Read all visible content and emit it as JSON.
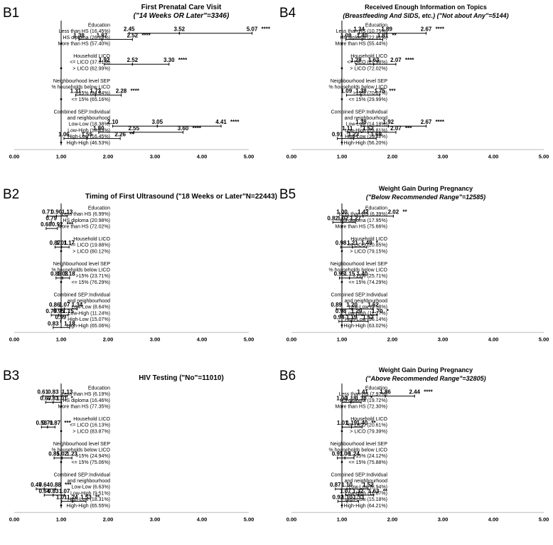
{
  "chart_data": [
    {
      "type": "forest",
      "panel": "B1",
      "title": "First Prenatal Care Visit",
      "subtitle": "(\"14 Weeks OR Later\"=3346)",
      "xlim": [
        0,
        5
      ],
      "ticks": [
        "0.00",
        "1.00",
        "2.00",
        "3.00",
        "4.00",
        "5.00"
      ],
      "rows": [
        {
          "label": "Education",
          "header": true
        },
        {
          "label": "Less than HS (16.45%)",
          "lo": 2.45,
          "or": 3.52,
          "hi": 5.07,
          "sig": "****"
        },
        {
          "label": "HS diploma (26.15%)",
          "lo": 1.38,
          "or": 1.87,
          "hi": 2.52,
          "sig": "****"
        },
        {
          "label": "More than HS (57.40%)",
          "ref": true
        },
        {
          "label": "",
          "gap": true
        },
        {
          "label": "Household LICO",
          "header": true
        },
        {
          "label": "<= LICO (37.01%)",
          "lo": 1.92,
          "or": 2.52,
          "hi": 3.3,
          "sig": "****"
        },
        {
          "label": "> LICO (62.99%)",
          "ref": true
        },
        {
          "label": "",
          "gap": true
        },
        {
          "label": "Neighbourhood level SEP",
          "header": true
        },
        {
          "label": "% households below LICO",
          "header": true
        },
        {
          "label": ">15% (34.84%)",
          "lo": 1.31,
          "or": 1.73,
          "hi": 2.28,
          "sig": "****"
        },
        {
          "label": "<= 15% (65.16%)",
          "ref": true
        },
        {
          "label": "",
          "gap": true
        },
        {
          "label": "Combined SEP:Individual",
          "header": true
        },
        {
          "label": "and neighbourhood",
          "header": true
        },
        {
          "label": "Low-Low (18.38%)",
          "lo": 2.1,
          "or": 3.05,
          "hi": 4.41,
          "sig": "****"
        },
        {
          "label": "Low-High (18.63%)",
          "lo": 1.8,
          "or": 2.55,
          "hi": 3.6,
          "sig": "****"
        },
        {
          "label": "High-Low (16.45%)",
          "lo": 1.06,
          "or": 1.55,
          "hi": 2.26,
          "sig": "**"
        },
        {
          "label": "High-High (46.53%)",
          "ref": true
        }
      ]
    },
    {
      "type": "forest",
      "panel": "B2",
      "title": "Timing of First Ultrasound (\"18 Weeks or Later\"N=22443)",
      "subtitle": "",
      "xlim": [
        0,
        5
      ],
      "ticks": [
        "0.00",
        "1.00",
        "2.00",
        "3.00",
        "4.00",
        "5.00"
      ],
      "rows": [
        {
          "label": "Education",
          "header": true
        },
        {
          "label": "Less than HS (6.99%)",
          "lo": 0.71,
          "or": 0.9,
          "hi": 1.13,
          "sig": ""
        },
        {
          "label": "HS diploma (20.98%)",
          "lo": null,
          "or": 0.79,
          "hi": null,
          "sig": ""
        },
        {
          "label": "More than HS (72.02%)",
          "lo": 0.68,
          "or": null,
          "hi": 0.92,
          "sig": "***"
        },
        {
          "label": "",
          "gap": true
        },
        {
          "label": "Household LICO",
          "header": true
        },
        {
          "label": "<= LICO (19.88%)",
          "lo": 0.87,
          "or": 1.01,
          "hi": 1.17,
          "sig": ""
        },
        {
          "label": "> LICO (80.12%)",
          "ref": true
        },
        {
          "label": "",
          "gap": true
        },
        {
          "label": "Neighbourhood level SEP",
          "header": true
        },
        {
          "label": "% households below LICO",
          "header": true
        },
        {
          "label": ">15% (23.71%)",
          "lo": 0.89,
          "or": 1.03,
          "hi": 1.18,
          "sig": ""
        },
        {
          "label": "<= 15% (76.29%)",
          "ref": true
        },
        {
          "label": "",
          "gap": true
        },
        {
          "label": "Combined SEP:Individual",
          "header": true
        },
        {
          "label": "and neighbourhood",
          "header": true
        },
        {
          "label": "Low-Low (8.64%)",
          "lo": 0.86,
          "or": 1.07,
          "hi": 1.34,
          "sig": ""
        },
        {
          "label": "Low-High (11.24%)",
          "lo": 0.79,
          "or": 0.95,
          "hi": 1.15,
          "sig": ""
        },
        {
          "label": "High-Low (15.07%)",
          "lo": null,
          "or": 0.99,
          "hi": null,
          "sig": ""
        },
        {
          "label": "High-High (65.06%)",
          "lo": 0.83,
          "or": null,
          "hi": 1.18,
          "sig": ""
        }
      ]
    },
    {
      "type": "forest",
      "panel": "B3",
      "title": "HIV Testing (\"No\"=11010)",
      "subtitle": "",
      "xlim": [
        0,
        5
      ],
      "ticks": [
        "0.00",
        "1.00",
        "2.00",
        "3.00",
        "4.00",
        "5.00"
      ],
      "rows": [
        {
          "label": "Education",
          "header": true
        },
        {
          "label": "Less than HS (6.19%)",
          "lo": 0.61,
          "or": 0.83,
          "hi": 1.13,
          "sig": ""
        },
        {
          "label": "HS diploma (16.46%)",
          "lo": 0.67,
          "or": 0.83,
          "hi": 1.01,
          "sig": "*"
        },
        {
          "label": "More than HS (77.35%)",
          "ref": true
        },
        {
          "label": "",
          "gap": true
        },
        {
          "label": "Household LICO",
          "header": true
        },
        {
          "label": "<= LICO (16.13%)",
          "lo": 0.58,
          "or": 0.71,
          "hi": 0.87,
          "sig": "***"
        },
        {
          "label": "> LICO (83.87%)",
          "ref": true
        },
        {
          "label": "",
          "gap": true
        },
        {
          "label": "Neighbourhood level SEP",
          "header": true
        },
        {
          "label": "% households below LICO",
          "header": true
        },
        {
          "label": ">15% (24.94%)",
          "lo": 0.85,
          "or": 1.02,
          "hi": 1.23,
          "sig": ""
        },
        {
          "label": "<= 15% (75.06%)",
          "ref": true
        },
        {
          "label": "",
          "gap": true
        },
        {
          "label": "Combined SEP:Individual",
          "header": true
        },
        {
          "label": "and neighbourhood",
          "header": true
        },
        {
          "label": "Low-Low (6.63%)",
          "lo": 0.47,
          "or": 0.64,
          "hi": 0.88,
          "sig": "***"
        },
        {
          "label": "Low-High (9.51%)",
          "lo": 0.64,
          "or": 0.83,
          "hi": 1.07,
          "sig": ""
        },
        {
          "label": "High-Low (18.31%)",
          "lo": 1.01,
          "or": 1.24,
          "hi": 1.53,
          "sig": "**"
        },
        {
          "label": "High-High (65.55%)",
          "ref": true
        }
      ]
    },
    {
      "type": "forest",
      "panel": "B4",
      "title": "Received Enough Information on Topics",
      "subtitle": "(Breastfeeding And SIDS, etc.) (\"Not about Any\"=5144)",
      "xlim": [
        0,
        5
      ],
      "ticks": [
        "0.00",
        "1.00",
        "2.00",
        "3.00",
        "4.00",
        "5.00"
      ],
      "rows": [
        {
          "label": "Education",
          "header": true
        },
        {
          "label": "Less than HS (10.75%)",
          "lo": 1.34,
          "or": 1.89,
          "hi": 2.67,
          "sig": "****"
        },
        {
          "label": "HS diploma (22.81%)",
          "lo": 1.08,
          "or": 1.4,
          "hi": 1.81,
          "sig": "**"
        },
        {
          "label": "More than HS (55.44%)",
          "ref": true
        },
        {
          "label": "",
          "gap": true
        },
        {
          "label": "Household LICO",
          "header": true
        },
        {
          "label": "<= LICO (27.98%)",
          "lo": 1.28,
          "or": 1.63,
          "hi": 2.07,
          "sig": "****"
        },
        {
          "label": "> LICO (72.02%)",
          "ref": true
        },
        {
          "label": "",
          "gap": true
        },
        {
          "label": "Neighbourhood level SEP",
          "header": true
        },
        {
          "label": "% households below LICO",
          "header": true
        },
        {
          "label": ">15% (70.01%)",
          "lo": 1.09,
          "or": 1.38,
          "hi": 1.75,
          "sig": "***"
        },
        {
          "label": "<= 15% (29.99%)",
          "ref": true
        },
        {
          "label": "",
          "gap": true
        },
        {
          "label": "Combined SEP:Individual",
          "header": true
        },
        {
          "label": "and neighbourhood",
          "header": true
        },
        {
          "label": "Low-Low (14.18%)",
          "lo": 1.38,
          "or": 1.92,
          "hi": 2.67,
          "sig": "****"
        },
        {
          "label": "Low-High (13.81%)",
          "lo": 1.11,
          "or": 1.52,
          "hi": 2.07,
          "sig": "***"
        },
        {
          "label": "High-Low (15.82%)",
          "lo": 0.91,
          "or": 1.23,
          "hi": 1.68,
          "sig": ""
        },
        {
          "label": "High-High (56.20%)",
          "ref": true
        }
      ]
    },
    {
      "type": "forest",
      "panel": "B5",
      "title": "Weight Gain During Pregnancy",
      "subtitle": "(\"Below Recommended Range\"=12585)",
      "xlim": [
        0,
        5
      ],
      "ticks": [
        "0.00",
        "1.00",
        "2.00",
        "3.00",
        "4.00",
        "5.00"
      ],
      "rows": [
        {
          "label": "Education",
          "header": true
        },
        {
          "label": "Less than HS (6.39%)",
          "lo": 1.0,
          "or": 1.42,
          "hi": 2.02,
          "sig": "**"
        },
        {
          "label": "HS diploma (17.95%)",
          "lo": 0.82,
          "or": 1.02,
          "hi": 1.27,
          "sig": ""
        },
        {
          "label": "More than HS (75.66%)",
          "ref": true
        },
        {
          "label": "",
          "gap": true
        },
        {
          "label": "Household LICO",
          "header": true
        },
        {
          "label": "<= LICO (20.85%)",
          "lo": 0.98,
          "or": 1.21,
          "hi": 1.49,
          "sig": "*"
        },
        {
          "label": "> LICO (79.15%)",
          "ref": true
        },
        {
          "label": "",
          "gap": true
        },
        {
          "label": "Neighbourhood level SEP",
          "header": true
        },
        {
          "label": "% households below LICO",
          "header": true
        },
        {
          "label": ">15% (25.71%)",
          "lo": 0.95,
          "or": 1.15,
          "hi": 1.4,
          "sig": ""
        },
        {
          "label": "<= 15% (74.29%)",
          "ref": true
        },
        {
          "label": "",
          "gap": true
        },
        {
          "label": "Combined SEP:Individual",
          "header": true
        },
        {
          "label": "and neighbourhood",
          "header": true
        },
        {
          "label": "Low-Low (9.58%)",
          "lo": 0.89,
          "or": 1.2,
          "hi": 1.62,
          "sig": ""
        },
        {
          "label": "Low-High (11.27%)",
          "lo": 0.98,
          "or": 1.29,
          "hi": 1.7,
          "sig": "*"
        },
        {
          "label": "High-Low (16.14%)",
          "lo": 0.94,
          "or": 1.19,
          "hi": 1.52,
          "sig": ""
        },
        {
          "label": "High-High (63.02%)",
          "ref": true
        }
      ]
    },
    {
      "type": "forest",
      "panel": "B6",
      "title": "Weight Gain During Pregnancy",
      "subtitle": "(\"Above Recommended Range\"=32805)",
      "xlim": [
        0,
        5
      ],
      "ticks": [
        "0.00",
        "1.00",
        "2.00",
        "3.00",
        "4.00",
        "5.00"
      ],
      "rows": [
        {
          "label": "Education",
          "header": true
        },
        {
          "label": "Less than HS (7.97%)",
          "lo": 1.41,
          "or": 1.86,
          "hi": 2.44,
          "sig": "****"
        },
        {
          "label": "HS diploma (19.72%)",
          "lo": 1.0,
          "or": 1.18,
          "hi": 1.38,
          "sig": "*"
        },
        {
          "label": "More than HS (72.30%)",
          "ref": true
        },
        {
          "label": "",
          "gap": true
        },
        {
          "label": "Household LICO",
          "header": true
        },
        {
          "label": "<= LICO (20.61%)",
          "lo": 1.01,
          "or": 1.19,
          "hi": 1.4,
          "sig": "**"
        },
        {
          "label": "> LICO (79.39%)",
          "ref": true
        },
        {
          "label": "",
          "gap": true
        },
        {
          "label": "Neighbourhood level SEP",
          "header": true
        },
        {
          "label": "% households below LICO",
          "header": true
        },
        {
          "label": ">15% (24.12%)",
          "lo": 0.91,
          "or": 1.06,
          "hi": 1.24,
          "sig": ""
        },
        {
          "label": "<= 15% (75.88%)",
          "ref": true
        },
        {
          "label": "",
          "gap": true
        },
        {
          "label": "Combined SEP:Individual",
          "header": true
        },
        {
          "label": "and neighbourhood",
          "header": true
        },
        {
          "label": "Low-Low (8.94%)",
          "lo": 0.87,
          "or": 1.1,
          "hi": 1.52,
          "sig": ""
        },
        {
          "label": "Low-High (11.67%)",
          "lo": 1.07,
          "or": 1.32,
          "hi": 1.63,
          "sig": "**"
        },
        {
          "label": "High-Low (15.18%)",
          "lo": 0.92,
          "or": 1.1,
          "hi": 1.33,
          "sig": ""
        },
        {
          "label": "High-High (64.21%)",
          "ref": true
        }
      ]
    }
  ]
}
